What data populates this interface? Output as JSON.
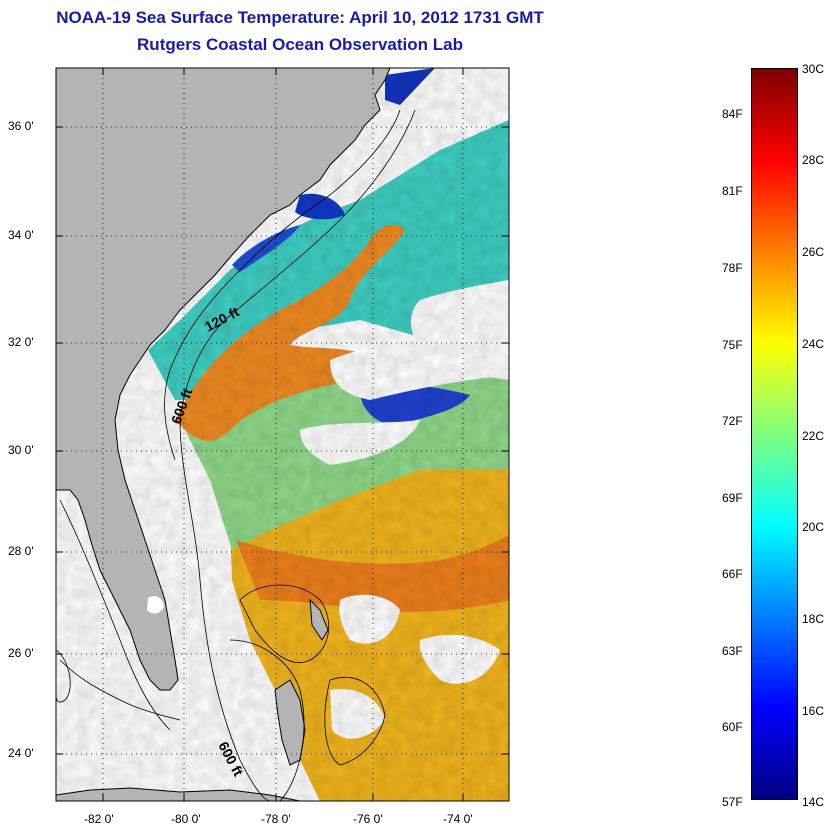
{
  "title": {
    "line1": "NOAA-19 Sea Surface Temperature:  April 10, 2012 1731 GMT",
    "line2": "Rutgers Coastal Ocean Observation Lab"
  },
  "map": {
    "lat_labels": [
      "36 0'",
      "34 0'",
      "32 0'",
      "30 0'",
      "28 0'",
      "26 0'",
      "24 0'"
    ],
    "lon_labels": [
      "-82 0'",
      "-80 0'",
      "-78 0'",
      "-76 0'",
      "-74 0'"
    ],
    "lon_range": [
      -83,
      -73
    ],
    "lat_range": [
      23,
      37
    ],
    "contour_labels": [
      "120 ft",
      "600 ft",
      "600 ft"
    ],
    "colors": {
      "land": "#b4b4b4",
      "cloud": "#ffffff",
      "gulf_stream": "#f08a1e",
      "shelf_cool": "#3cd0c8",
      "cold": "#1030d0",
      "warm_yellow": "#f2c21a"
    }
  },
  "colorbar": {
    "celsius_labels": [
      "30C",
      "28C",
      "26C",
      "24C",
      "22C",
      "20C",
      "18C",
      "16C",
      "14C"
    ],
    "fahrenheit_labels": [
      "84F",
      "81F",
      "78F",
      "75F",
      "72F",
      "69F",
      "66F",
      "63F",
      "60F",
      "57F"
    ],
    "range_c": [
      14,
      30
    ],
    "colormap": [
      "#00007f",
      "#0000ff",
      "#007fff",
      "#00ffff",
      "#7fff7f",
      "#ffff00",
      "#ff7f00",
      "#ff0000",
      "#7f0000"
    ]
  }
}
